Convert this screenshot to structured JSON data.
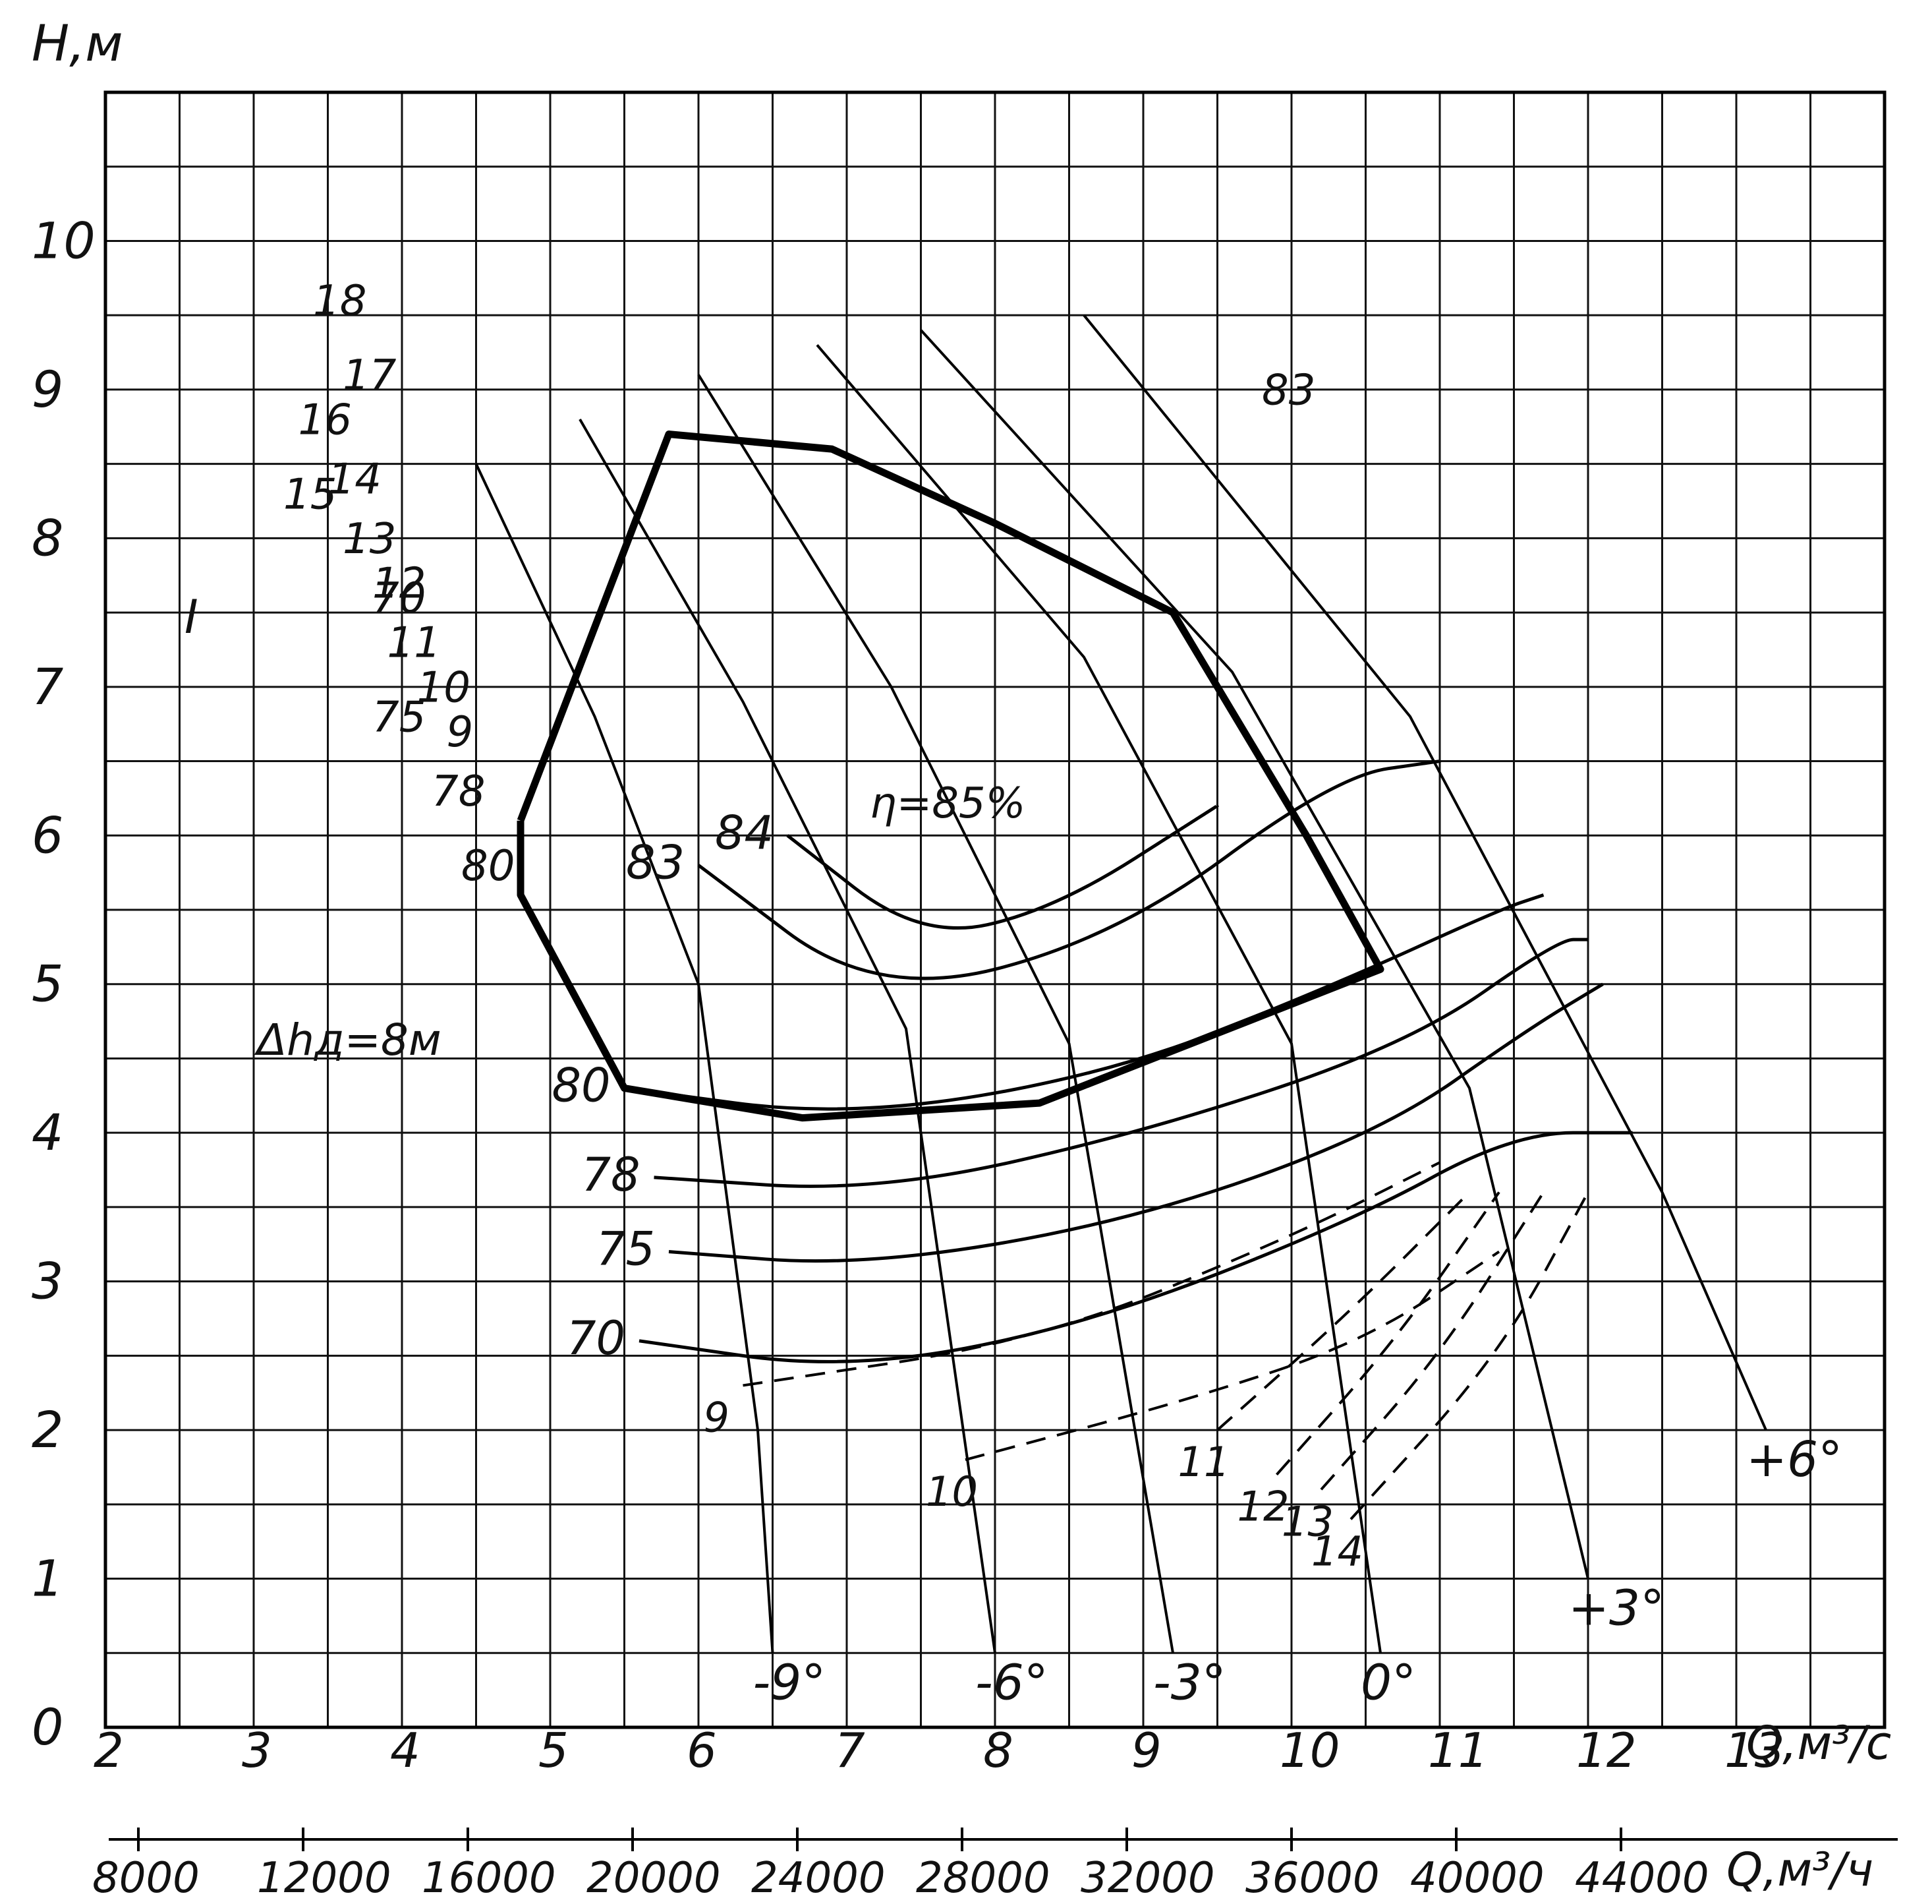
{
  "chart_data": {
    "type": "line",
    "y_axis_label": "H,м",
    "x_axis_label": "Q,м³/с",
    "x2_axis_label": "Q,м³/ч",
    "xlim": [
      2,
      14
    ],
    "ylim": [
      0,
      11
    ],
    "x_ticks": [
      "2",
      "3",
      "4",
      "5",
      "6",
      "7",
      "8",
      "9",
      "10",
      "11",
      "12",
      "13"
    ],
    "y_ticks": [
      "0",
      "1",
      "2",
      "3",
      "4",
      "5",
      "6",
      "7",
      "8",
      "9",
      "10"
    ],
    "x2_ticks": [
      "8000",
      "12000",
      "16000",
      "20000",
      "24000",
      "28000",
      "32000",
      "36000",
      "40000",
      "44000"
    ],
    "grid": true,
    "optimal_efficiency_label": "η=85%",
    "cavitation_label": "Δhд=8м",
    "curve_I_label": "I",
    "blade_angles": [
      {
        "label": "-9°",
        "points": [
          [
            4.5,
            8.5
          ],
          [
            5.3,
            6.8
          ],
          [
            6.0,
            5.0
          ],
          [
            6.4,
            2.0
          ],
          [
            6.5,
            0.5
          ]
        ]
      },
      {
        "label": "-6°",
        "points": [
          [
            5.2,
            8.8
          ],
          [
            6.3,
            6.9
          ],
          [
            7.4,
            4.7
          ],
          [
            8.0,
            0.5
          ]
        ]
      },
      {
        "label": "-3°",
        "points": [
          [
            6.0,
            9.1
          ],
          [
            7.3,
            7.0
          ],
          [
            8.5,
            4.6
          ],
          [
            9.2,
            0.5
          ]
        ]
      },
      {
        "label": "0°",
        "points": [
          [
            6.8,
            9.3
          ],
          [
            8.6,
            7.2
          ],
          [
            10.0,
            4.6
          ],
          [
            10.6,
            0.5
          ]
        ]
      },
      {
        "label": "+3°",
        "points": [
          [
            7.5,
            9.4
          ],
          [
            9.6,
            7.1
          ],
          [
            11.2,
            4.3
          ],
          [
            12.0,
            1.0
          ]
        ]
      },
      {
        "label": "+6°",
        "points": [
          [
            8.6,
            9.5
          ],
          [
            10.8,
            6.8
          ],
          [
            12.5,
            3.6
          ],
          [
            13.2,
            2.0
          ]
        ]
      }
    ],
    "efficiency_contours": [
      {
        "label": "70",
        "points": [
          [
            5.6,
            2.6
          ],
          [
            7.0,
            2.4
          ],
          [
            8.6,
            2.7
          ],
          [
            10.4,
            3.4
          ],
          [
            11.5,
            4.0
          ],
          [
            12.3,
            4.0
          ]
        ]
      },
      {
        "label": "75",
        "points": [
          [
            5.8,
            3.2
          ],
          [
            7.1,
            3.1
          ],
          [
            8.9,
            3.4
          ],
          [
            10.6,
            4.0
          ],
          [
            11.6,
            4.7
          ],
          [
            12.1,
            5.0
          ]
        ]
      },
      {
        "label": "78",
        "points": [
          [
            5.7,
            3.7
          ],
          [
            7.2,
            3.6
          ],
          [
            9.0,
            4.0
          ],
          [
            10.8,
            4.6
          ],
          [
            11.8,
            5.3
          ],
          [
            12.0,
            5.3
          ]
        ]
      },
      {
        "label": "80",
        "points": [
          [
            5.5,
            4.3
          ],
          [
            7.0,
            4.1
          ],
          [
            8.8,
            4.4
          ],
          [
            10.3,
            5.0
          ],
          [
            11.4,
            5.5
          ],
          [
            11.7,
            5.6
          ]
        ]
      },
      {
        "label": "83",
        "points": [
          [
            6.0,
            5.8
          ],
          [
            7.2,
            4.9
          ],
          [
            8.8,
            5.3
          ],
          [
            10.3,
            6.4
          ],
          [
            11.0,
            6.5
          ]
        ]
      },
      {
        "label": "84",
        "points": [
          [
            6.6,
            6.0
          ],
          [
            7.5,
            5.3
          ],
          [
            8.4,
            5.5
          ],
          [
            9.5,
            6.2
          ]
        ]
      }
    ],
    "head_curves": [
      {
        "label": "9",
        "points": [
          [
            6.3,
            2.3
          ],
          [
            8.3,
            2.6
          ],
          [
            10.0,
            3.3
          ],
          [
            11.0,
            3.8
          ]
        ]
      },
      {
        "label": "10",
        "points": [
          [
            7.8,
            1.8
          ],
          [
            9.3,
            2.2
          ],
          [
            10.5,
            2.6
          ],
          [
            11.4,
            3.2
          ]
        ]
      },
      {
        "label": "11",
        "points": [
          [
            9.5,
            2.0
          ],
          [
            10.4,
            2.8
          ],
          [
            11.2,
            3.6
          ]
        ]
      },
      {
        "label": "12",
        "points": [
          [
            9.9,
            1.7
          ],
          [
            10.7,
            2.6
          ],
          [
            11.4,
            3.6
          ]
        ]
      },
      {
        "label": "13",
        "points": [
          [
            10.2,
            1.6
          ],
          [
            11.0,
            2.5
          ],
          [
            11.7,
            3.6
          ]
        ]
      },
      {
        "label": "14",
        "points": [
          [
            10.4,
            1.4
          ],
          [
            11.4,
            2.5
          ],
          [
            12.0,
            3.6
          ]
        ]
      }
    ],
    "operating_zone": [
      [
        4.8,
        6.1
      ],
      [
        5.8,
        8.7
      ],
      [
        6.9,
        8.6
      ],
      [
        8.0,
        8.1
      ],
      [
        9.2,
        7.5
      ],
      [
        10.1,
        6.0
      ],
      [
        10.6,
        5.1
      ],
      [
        8.3,
        4.2
      ],
      [
        6.7,
        4.1
      ],
      [
        5.5,
        4.3
      ],
      [
        4.8,
        5.6
      ]
    ],
    "side_labels": [
      "18",
      "17",
      "16",
      "15",
      "14",
      "13",
      "12",
      "11",
      "10",
      "9",
      "70",
      "75",
      "78",
      "80",
      "83"
    ]
  }
}
